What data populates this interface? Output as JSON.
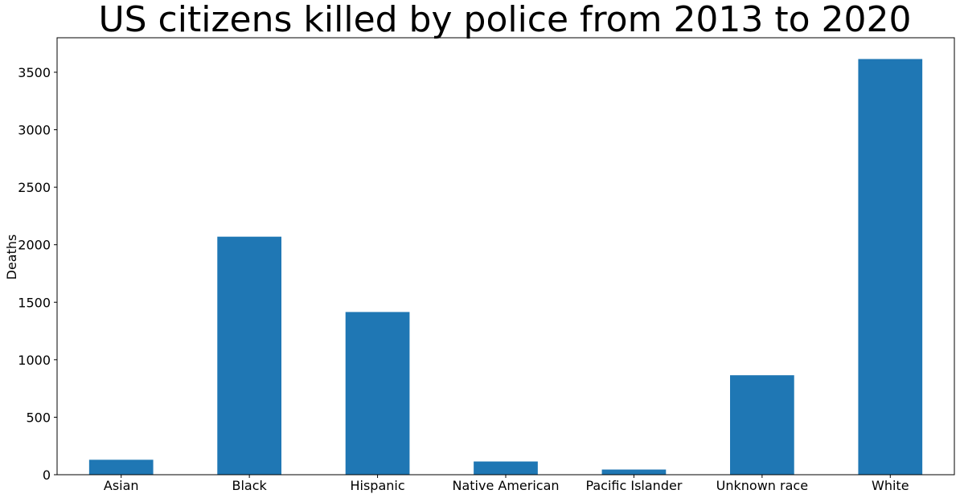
{
  "chart_data": {
    "type": "bar",
    "title": "US citizens killed by police from 2013 to 2020",
    "xlabel": "",
    "ylabel": "Deaths",
    "categories": [
      "Asian",
      "Black",
      "Hispanic",
      "Native American",
      "Pacific Islander",
      "Unknown race",
      "White"
    ],
    "values": [
      130,
      2070,
      1415,
      115,
      45,
      865,
      3615
    ],
    "ylim": [
      0,
      3800
    ],
    "yticks": [
      "0",
      "500",
      "1000",
      "1500",
      "2000",
      "2500",
      "3000",
      "3500"
    ],
    "bar_color": "#1f77b4",
    "grid": false,
    "legend": "none"
  }
}
